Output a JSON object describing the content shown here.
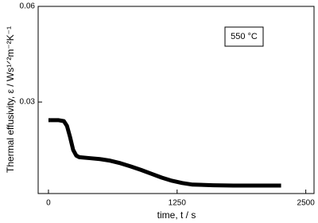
{
  "chart_data": {
    "type": "line",
    "xlabel": "time, t / s",
    "ylabel": "Thermal effusivity, ε / Ws¹ᐟ²m⁻²K⁻¹",
    "annotation": "550 °C",
    "x": [
      0,
      100,
      150,
      180,
      210,
      240,
      270,
      300,
      400,
      500,
      600,
      700,
      800,
      900,
      1000,
      1100,
      1200,
      1300,
      1400,
      1600,
      1800,
      2000,
      2260
    ],
    "series": [
      {
        "color": "#000000",
        "values": [
          0.0243,
          0.0243,
          0.024,
          0.0225,
          0.019,
          0.015,
          0.0132,
          0.0127,
          0.0124,
          0.0121,
          0.0116,
          0.0108,
          0.0098,
          0.0087,
          0.0075,
          0.0063,
          0.0053,
          0.0046,
          0.0041,
          0.0039,
          0.0038,
          0.0038,
          0.0038
        ]
      }
    ],
    "xlim": [
      -100,
      2580
    ],
    "xticks": [
      0,
      1250,
      2500
    ],
    "ylim": [
      0.0013,
      0.06
    ],
    "yticks": [
      0.03,
      0.06
    ]
  }
}
